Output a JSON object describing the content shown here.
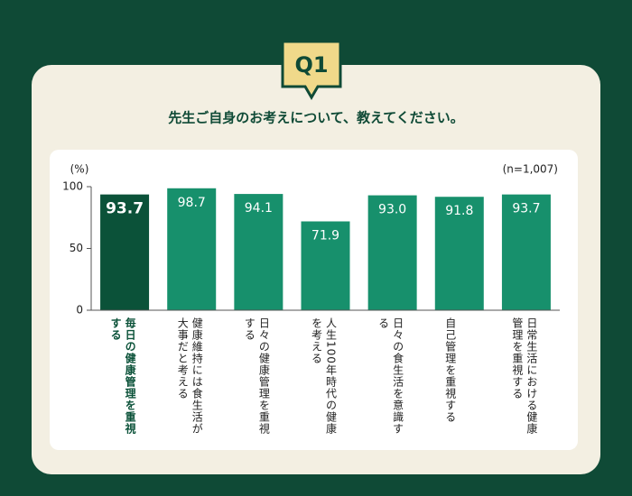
{
  "badge": "Q1",
  "chart_data": {
    "type": "bar",
    "title": "先生ご自身のお考えについて、教えてください。",
    "ylabel": "(%)",
    "note": "(n=1,007)",
    "categories": [
      "毎日の健康管理を重視する",
      "健康維持には食生活が大事だと考える",
      "日々の健康管理を重視する",
      "人生100年時代の健康を考える",
      "日々の食生活を意識する",
      "自己管理を重視する",
      "日常生活における健康管理を重視する"
    ],
    "values": [
      93.7,
      98.7,
      94.1,
      71.9,
      93.0,
      91.8,
      93.7
    ],
    "value_labels": [
      "93.7",
      "98.7",
      "94.1",
      "71.9",
      "93.0",
      "91.8",
      "93.7"
    ],
    "colors": [
      "#0b5239",
      "#17906c",
      "#17906c",
      "#17906c",
      "#17906c",
      "#17906c",
      "#17906c"
    ],
    "ylim": [
      0,
      100
    ],
    "yticks": [
      0,
      50,
      100
    ]
  }
}
